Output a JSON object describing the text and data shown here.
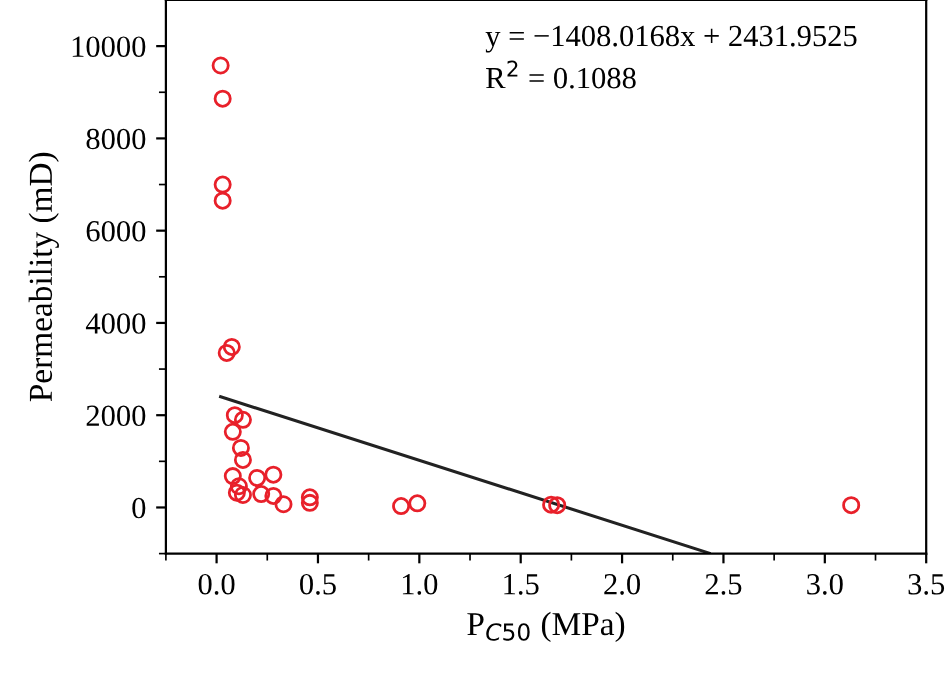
{
  "chart_data": {
    "type": "scatter",
    "xlabel": "P$_{C50}$ (MPa)",
    "ylabel": "Permeability (mD)",
    "xlim": [
      -0.25,
      3.5
    ],
    "ylim": [
      -1000,
      11000
    ],
    "xticks": [
      {
        "value": 0,
        "label": "0.0"
      },
      0.5,
      {
        "value": 1,
        "label": "1.0"
      },
      1.5,
      {
        "value": 2,
        "label": "2.0"
      },
      2.5,
      {
        "value": 3,
        "label": "3.0"
      },
      3.5
    ],
    "yticks": [
      0,
      2000,
      4000,
      6000,
      8000,
      10000
    ],
    "marker": "circle",
    "grid": false,
    "legend": false,
    "annotations": [
      "y = −1408.0168x + 2431.9525",
      "R$^{2}$ = 0.1088"
    ],
    "series": [
      {
        "color": "#e8202a",
        "x": [
          0.02,
          0.03,
          0.03,
          0.03,
          0.075,
          0.05,
          0.09,
          0.13,
          0.08,
          0.12,
          0.13,
          0.08,
          0.2,
          0.28,
          0.11,
          0.1,
          0.13,
          0.22,
          0.28,
          0.33,
          0.46,
          0.46,
          0.91,
          0.99,
          1.65,
          1.68,
          3.13
        ],
        "values": [
          9580,
          8860,
          7000,
          6650,
          3480,
          3350,
          2000,
          1900,
          1640,
          1290,
          1030,
          680,
          640,
          710,
          460,
          320,
          270,
          290,
          250,
          70,
          220,
          100,
          30,
          90,
          60,
          50,
          50
        ]
      },
      {
        "type": "line",
        "color": "#222222",
        "marker": "none",
        "line_style": "solid",
        "x": [
          0.02,
          2.43
        ],
        "values": [
          2400,
          -990
        ]
      }
    ]
  }
}
